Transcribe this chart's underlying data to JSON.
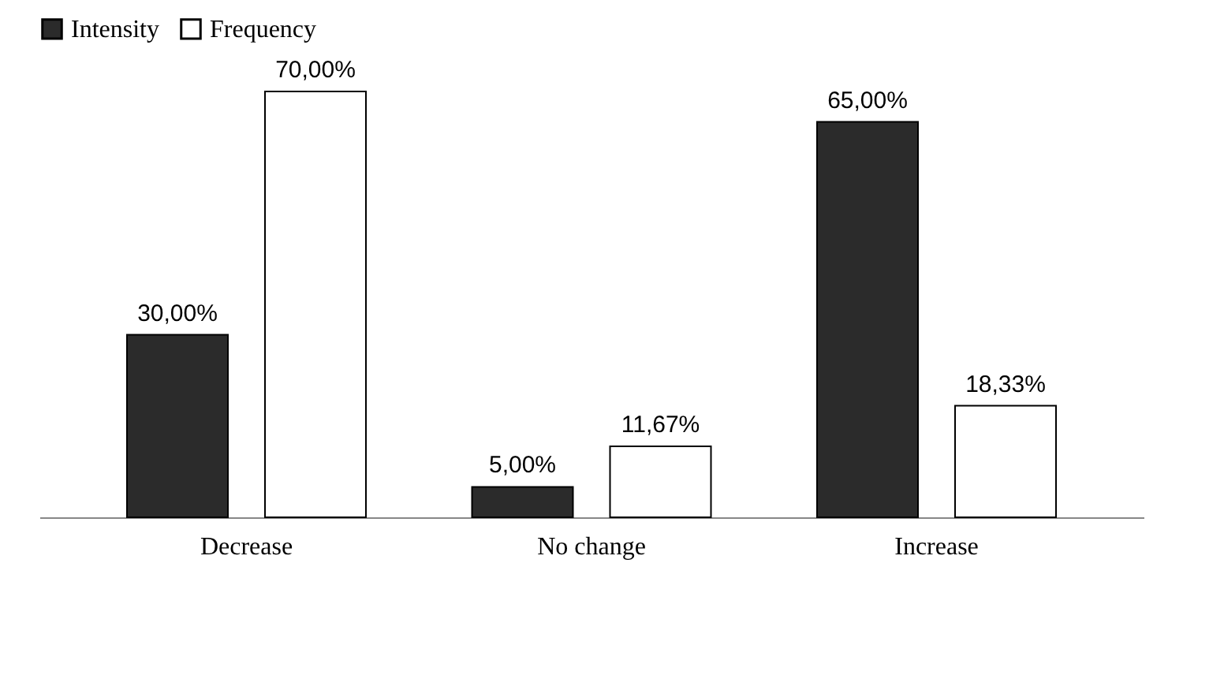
{
  "chart_data": {
    "type": "bar",
    "categories": [
      "Decrease",
      "No change",
      "Increase"
    ],
    "series": [
      {
        "name": "Intensity",
        "color": "#2b2b2b",
        "values": [
          30,
          5,
          65
        ],
        "value_labels": [
          "30,00%",
          "5,00%",
          "65,00%"
        ]
      },
      {
        "name": "Frequency",
        "color": "#ffffff",
        "values": [
          70,
          11.67,
          18.33
        ],
        "value_labels": [
          "70,00%",
          "11,67%",
          "18,33%"
        ]
      }
    ],
    "legend": "top",
    "grid": false
  }
}
